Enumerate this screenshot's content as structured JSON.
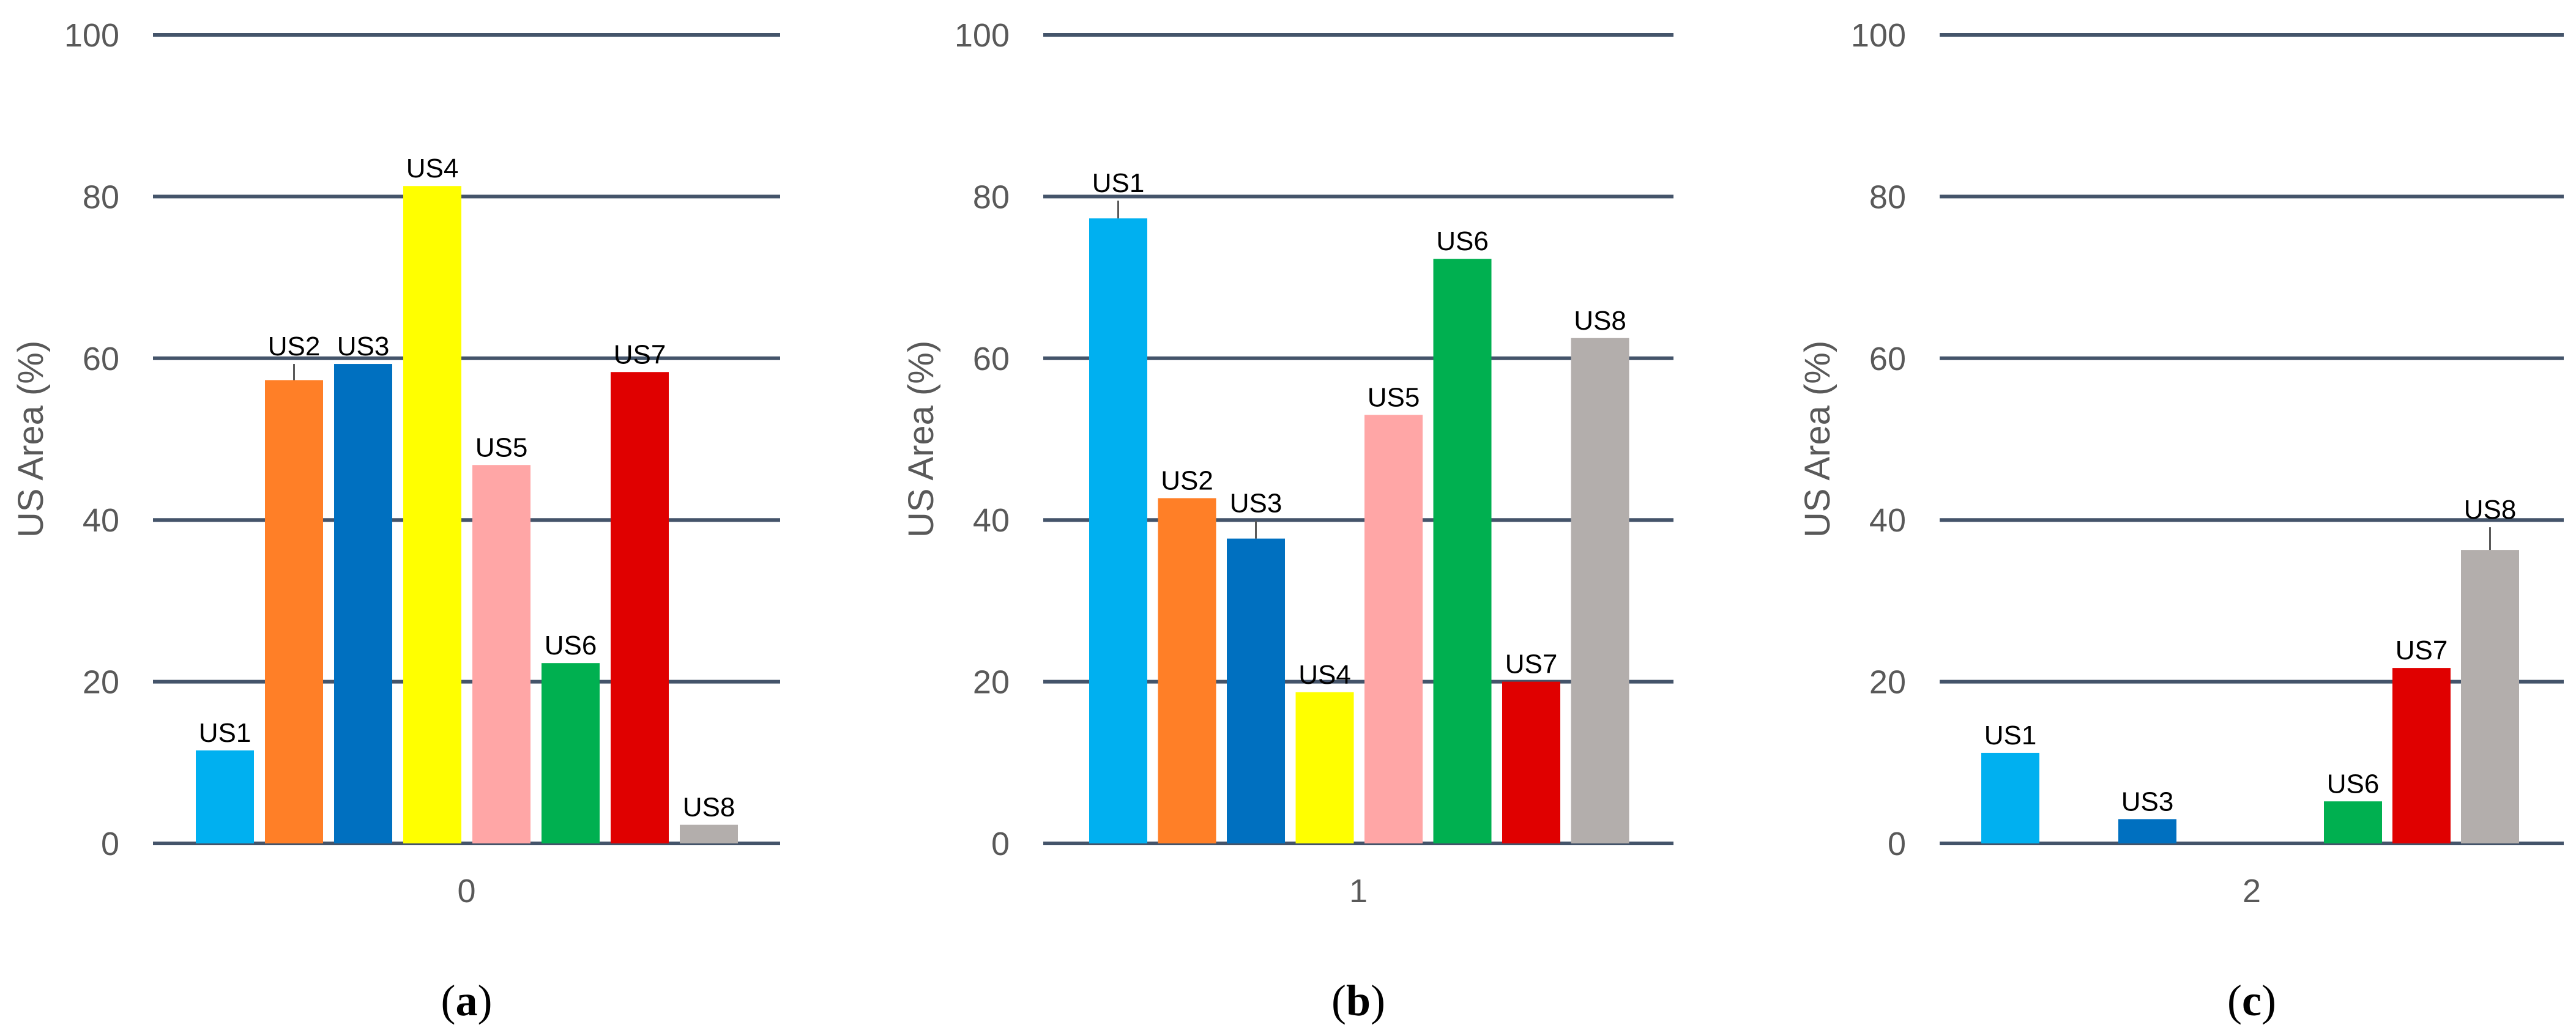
{
  "colors": {
    "US1": "#00b0f0",
    "US2": "#ff7f27",
    "US3": "#0070c0",
    "US4": "#ffff00",
    "US5": "#ffa6a6",
    "US6": "#00b050",
    "US7": "#e00000",
    "US8": "#b3aeac",
    "grid": "#44546a",
    "text": "#595959"
  },
  "chart_data": [
    {
      "type": "bar",
      "panel": "(a)",
      "caption_letter": "a",
      "categories": [
        "0"
      ],
      "ylabel": "US Area (%)",
      "ylim": [
        0,
        100
      ],
      "yticks": [
        0,
        20,
        40,
        60,
        80,
        100
      ],
      "grid": true,
      "series": [
        {
          "name": "US1",
          "values": [
            11.5
          ],
          "error": [
            0
          ]
        },
        {
          "name": "US2",
          "values": [
            57.3
          ],
          "error": [
            2.0
          ]
        },
        {
          "name": "US3",
          "values": [
            59.3
          ],
          "error": [
            0
          ]
        },
        {
          "name": "US4",
          "values": [
            81.3
          ],
          "error": [
            0
          ]
        },
        {
          "name": "US5",
          "values": [
            46.8
          ],
          "error": [
            0
          ]
        },
        {
          "name": "US6",
          "values": [
            22.3
          ],
          "error": [
            0
          ]
        },
        {
          "name": "US7",
          "values": [
            58.3
          ],
          "error": [
            0
          ]
        },
        {
          "name": "US8",
          "values": [
            2.3
          ],
          "error": [
            0
          ]
        }
      ]
    },
    {
      "type": "bar",
      "panel": "(b)",
      "caption_letter": "b",
      "categories": [
        "1"
      ],
      "ylabel": "US Area (%)",
      "ylim": [
        0,
        100
      ],
      "yticks": [
        0,
        20,
        40,
        60,
        80,
        100
      ],
      "grid": true,
      "series": [
        {
          "name": "US1",
          "values": [
            77.3
          ],
          "error": [
            2.2
          ]
        },
        {
          "name": "US2",
          "values": [
            42.7
          ],
          "error": [
            0
          ]
        },
        {
          "name": "US3",
          "values": [
            37.7
          ],
          "error": [
            2.2
          ]
        },
        {
          "name": "US4",
          "values": [
            18.7
          ],
          "error": [
            0
          ]
        },
        {
          "name": "US5",
          "values": [
            53.0
          ],
          "error": [
            0
          ]
        },
        {
          "name": "US6",
          "values": [
            72.3
          ],
          "error": [
            0
          ]
        },
        {
          "name": "US7",
          "values": [
            20.0
          ],
          "error": [
            0
          ]
        },
        {
          "name": "US8",
          "values": [
            62.5
          ],
          "error": [
            0
          ]
        }
      ]
    },
    {
      "type": "bar",
      "panel": "(c)",
      "caption_letter": "c",
      "categories": [
        "2"
      ],
      "ylabel": "US Area (%)",
      "ylim": [
        0,
        100
      ],
      "yticks": [
        0,
        20,
        40,
        60,
        80,
        100
      ],
      "grid": true,
      "series": [
        {
          "name": "US1",
          "values": [
            11.2
          ],
          "error": [
            0
          ]
        },
        {
          "name": "US3",
          "values": [
            3.0
          ],
          "error": [
            0
          ]
        },
        {
          "name": "US6",
          "values": [
            5.2
          ],
          "error": [
            0
          ]
        },
        {
          "name": "US7",
          "values": [
            21.7
          ],
          "error": [
            0
          ]
        },
        {
          "name": "US8",
          "values": [
            36.3
          ],
          "error": [
            2.8
          ]
        }
      ]
    }
  ]
}
